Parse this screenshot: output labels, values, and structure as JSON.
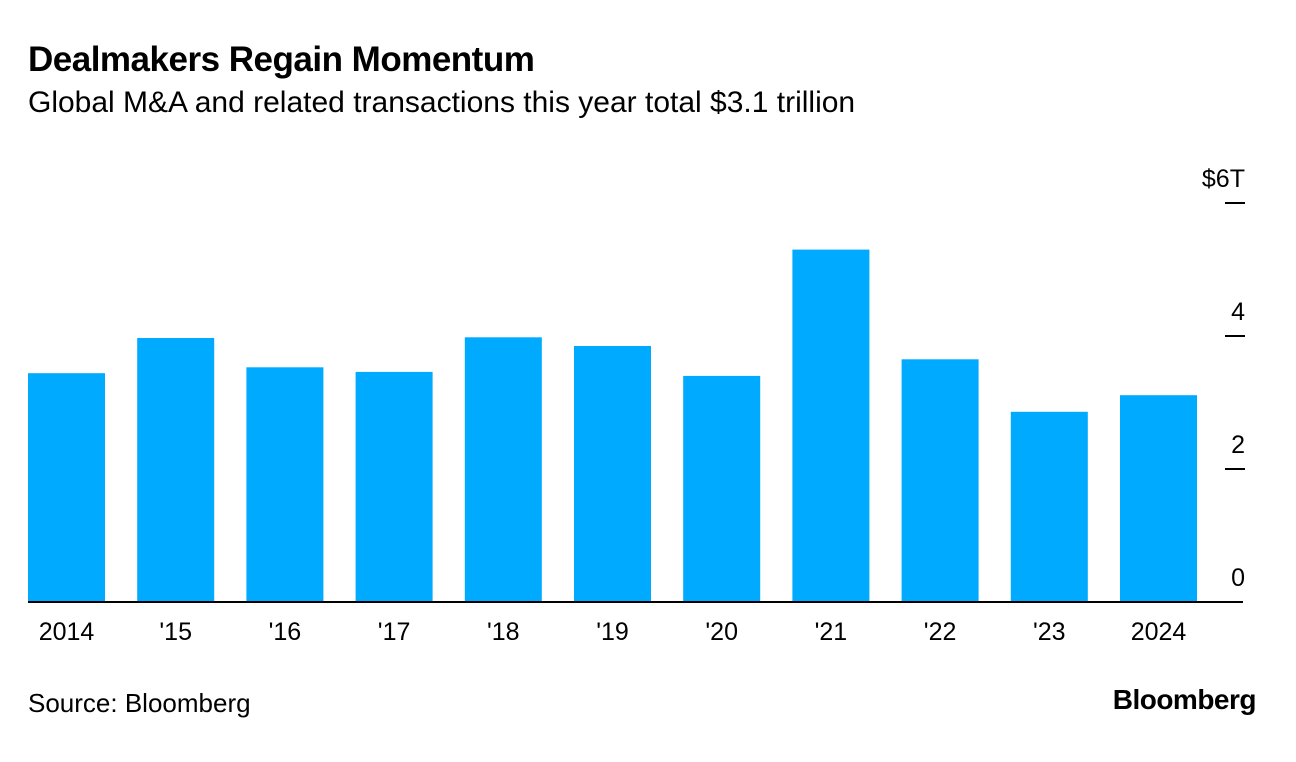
{
  "title": "Dealmakers Regain Momentum",
  "subtitle": "Global M&A and related transactions this year total $3.1 trillion",
  "source": "Source: Bloomberg",
  "brand": "Bloomberg",
  "colors": {
    "bar": "#00aaff",
    "axis": "#000000",
    "text": "#000000"
  },
  "chart_data": {
    "type": "bar",
    "title": "Dealmakers Regain Momentum",
    "xlabel": "",
    "ylabel": "",
    "categories": [
      "2014",
      "'15",
      "'16",
      "'17",
      "'18",
      "'19",
      "'20",
      "'21",
      "'22",
      "'23",
      "2024"
    ],
    "values": [
      3.44,
      3.97,
      3.53,
      3.46,
      3.98,
      3.85,
      3.4,
      5.3,
      3.65,
      2.86,
      3.11
    ],
    "ylim": [
      0,
      6
    ],
    "yticks": [
      {
        "value": 0,
        "label": "0"
      },
      {
        "value": 2,
        "label": "2"
      },
      {
        "value": 4,
        "label": "4"
      },
      {
        "value": 6,
        "label": "$6T"
      }
    ],
    "grid": false,
    "legend": "none"
  }
}
